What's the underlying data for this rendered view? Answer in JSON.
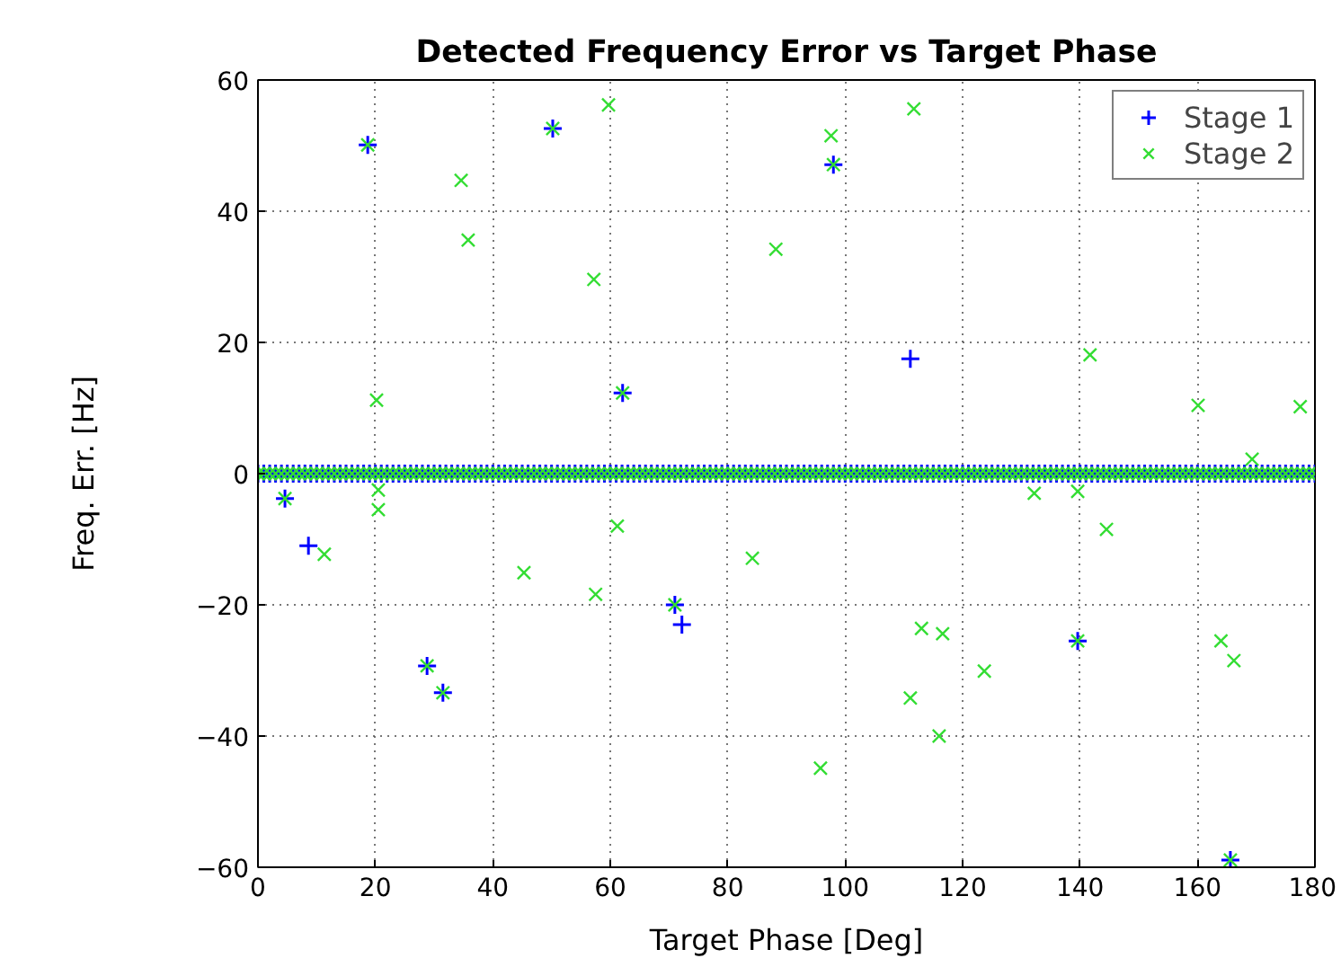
{
  "chart_data": {
    "type": "scatter",
    "title": "Detected Frequency Error vs Target Phase",
    "xlabel": "Target Phase [Deg]",
    "ylabel": "Freq. Err. [Hz]",
    "xlim": [
      0,
      180
    ],
    "ylim": [
      -60,
      60
    ],
    "xticks": [
      0,
      20,
      40,
      60,
      80,
      100,
      120,
      140,
      160,
      180
    ],
    "yticks": [
      -60,
      -40,
      -20,
      0,
      20,
      40,
      60
    ],
    "grid": true,
    "legend": "top right",
    "series": [
      {
        "name": "Stage 1",
        "color": "#0000ff",
        "marker": "cross",
        "x": [
          4.6,
          8.6,
          18.7,
          28.8,
          31.5,
          50.2,
          62.1,
          71.0,
          72.2,
          98.0,
          111.1,
          139.6,
          165.6,
          0,
          1,
          2,
          3,
          4,
          5,
          6,
          7,
          8,
          9,
          10,
          11,
          12,
          13,
          14,
          15,
          16,
          17,
          18,
          19,
          20,
          21,
          22,
          23,
          24,
          25,
          26,
          27,
          28,
          29,
          30,
          31,
          32,
          33,
          34,
          35,
          36,
          37,
          38,
          39,
          40,
          41,
          42,
          43,
          44,
          45,
          46,
          47,
          48,
          49,
          50,
          51,
          52,
          53,
          54,
          55,
          56,
          57,
          58,
          59,
          60,
          61,
          62,
          63,
          64,
          65,
          66,
          67,
          68,
          69,
          70,
          71,
          72,
          73,
          74,
          75,
          76,
          77,
          78,
          79,
          80,
          81,
          82,
          83,
          84,
          85,
          86,
          87,
          88,
          89,
          90,
          91,
          92,
          93,
          94,
          95,
          96,
          97,
          98,
          99,
          100,
          101,
          102,
          103,
          104,
          105,
          106,
          107,
          108,
          109,
          110,
          111,
          112,
          113,
          114,
          115,
          116,
          117,
          118,
          119,
          120,
          121,
          122,
          123,
          124,
          125,
          126,
          127,
          128,
          129,
          130,
          131,
          132,
          133,
          134,
          135,
          136,
          137,
          138,
          139,
          140,
          141,
          142,
          143,
          144,
          145,
          146,
          147,
          148,
          149,
          150,
          151,
          152,
          153,
          154,
          155,
          156,
          157,
          158,
          159,
          160,
          161,
          162,
          163,
          164,
          165,
          166,
          167,
          168,
          169,
          170,
          171,
          172,
          173,
          174,
          175,
          176,
          177,
          178,
          179,
          180
        ],
        "values": [
          -3.8,
          -11,
          50.1,
          -29.3,
          -33.4,
          52.6,
          12.3,
          -20,
          -23,
          47.1,
          17.5,
          -25.5,
          -58.9,
          0,
          0,
          0,
          0,
          0,
          0,
          0,
          0,
          0,
          0,
          0,
          0,
          0,
          0,
          0,
          0,
          0,
          0,
          0,
          0,
          0,
          0,
          0,
          0,
          0,
          0,
          0,
          0,
          0,
          0,
          0,
          0,
          0,
          0,
          0,
          0,
          0,
          0,
          0,
          0,
          0,
          0,
          0,
          0,
          0,
          0,
          0,
          0,
          0,
          0,
          0,
          0,
          0,
          0,
          0,
          0,
          0,
          0,
          0,
          0,
          0,
          0,
          0,
          0,
          0,
          0,
          0,
          0,
          0,
          0,
          0,
          0,
          0,
          0,
          0,
          0,
          0,
          0,
          0,
          0,
          0,
          0,
          0,
          0,
          0,
          0,
          0,
          0,
          0,
          0,
          0,
          0,
          0,
          0,
          0,
          0,
          0,
          0,
          0,
          0,
          0,
          0,
          0,
          0,
          0,
          0,
          0,
          0,
          0,
          0,
          0,
          0,
          0,
          0,
          0,
          0,
          0,
          0,
          0,
          0,
          0,
          0,
          0,
          0,
          0,
          0,
          0,
          0,
          0,
          0,
          0,
          0,
          0,
          0,
          0,
          0,
          0,
          0,
          0,
          0,
          0,
          0,
          0,
          0,
          0,
          0,
          0,
          0,
          0,
          0,
          0,
          0,
          0,
          0,
          0,
          0,
          0,
          0,
          0,
          0,
          0,
          0,
          0,
          0,
          0,
          0,
          0,
          0,
          0,
          0,
          0,
          0,
          0,
          0,
          0,
          0,
          0,
          0,
          0,
          0,
          0
        ]
      },
      {
        "name": "Stage 2",
        "color": "#33dd33",
        "marker": "x",
        "x": [
          4.6,
          11.3,
          18.7,
          20.2,
          20.5,
          20.5,
          28.8,
          31.5,
          34.6,
          35.8,
          45.3,
          50.2,
          57.2,
          57.5,
          59.7,
          61.2,
          62.1,
          71.0,
          84.2,
          88.2,
          95.8,
          97.6,
          98.0,
          111.1,
          111.7,
          113.0,
          116.0,
          116.6,
          123.7,
          132.2,
          139.6,
          139.6,
          141.7,
          144.5,
          160.1,
          164.0,
          165.6,
          166.2,
          169.3,
          177.5,
          0,
          1,
          2,
          3,
          4,
          5,
          6,
          7,
          8,
          9,
          10,
          11,
          12,
          13,
          14,
          15,
          16,
          17,
          18,
          19,
          20,
          21,
          22,
          23,
          24,
          25,
          26,
          27,
          28,
          29,
          30,
          31,
          32,
          33,
          34,
          35,
          36,
          37,
          38,
          39,
          40,
          41,
          42,
          43,
          44,
          45,
          46,
          47,
          48,
          49,
          50,
          51,
          52,
          53,
          54,
          55,
          56,
          57,
          58,
          59,
          60,
          61,
          62,
          63,
          64,
          65,
          66,
          67,
          68,
          69,
          70,
          71,
          72,
          73,
          74,
          75,
          76,
          77,
          78,
          79,
          80,
          81,
          82,
          83,
          84,
          85,
          86,
          87,
          88,
          89,
          90,
          91,
          92,
          93,
          94,
          95,
          96,
          97,
          98,
          99,
          100,
          101,
          102,
          103,
          104,
          105,
          106,
          107,
          108,
          109,
          110,
          111,
          112,
          113,
          114,
          115,
          116,
          117,
          118,
          119,
          120,
          121,
          122,
          123,
          124,
          125,
          126,
          127,
          128,
          129,
          130,
          131,
          132,
          133,
          134,
          135,
          136,
          137,
          138,
          139,
          140,
          141,
          142,
          143,
          144,
          145,
          146,
          147,
          148,
          149,
          150,
          151,
          152,
          153,
          154,
          155,
          156,
          157,
          158,
          159,
          160,
          161,
          162,
          163,
          164,
          165,
          166,
          167,
          168,
          169,
          170,
          171,
          172,
          173,
          174,
          175,
          176,
          177,
          178,
          179,
          180
        ],
        "values": [
          -3.8,
          -12.3,
          50.1,
          11.2,
          -2.5,
          -5.5,
          -29.3,
          -33.4,
          44.7,
          35.6,
          -15.1,
          52.6,
          29.6,
          -18.4,
          56.2,
          -8,
          12.3,
          -20,
          -12.9,
          34.2,
          -44.9,
          51.5,
          47.1,
          -34.2,
          55.6,
          -23.6,
          -40,
          -24.4,
          -30.1,
          -3,
          -2.7,
          -25.5,
          18.1,
          -8.5,
          10.4,
          -25.5,
          -58.9,
          -28.5,
          2.2,
          10.2,
          0,
          0,
          0,
          0,
          0,
          0,
          0,
          0,
          0,
          0,
          0,
          0,
          0,
          0,
          0,
          0,
          0,
          0,
          0,
          0,
          0,
          0,
          0,
          0,
          0,
          0,
          0,
          0,
          0,
          0,
          0,
          0,
          0,
          0,
          0,
          0,
          0,
          0,
          0,
          0,
          0,
          0,
          0,
          0,
          0,
          0,
          0,
          0,
          0,
          0,
          0,
          0,
          0,
          0,
          0,
          0,
          0,
          0,
          0,
          0,
          0,
          0,
          0,
          0,
          0,
          0,
          0,
          0,
          0,
          0,
          0,
          0,
          0,
          0,
          0,
          0,
          0,
          0,
          0,
          0,
          0,
          0,
          0,
          0,
          0,
          0,
          0,
          0,
          0,
          0,
          0,
          0,
          0,
          0,
          0,
          0,
          0,
          0,
          0,
          0,
          0,
          0,
          0,
          0,
          0,
          0,
          0,
          0,
          0,
          0,
          0,
          0,
          0,
          0,
          0,
          0,
          0,
          0,
          0,
          0,
          0,
          0,
          0,
          0,
          0,
          0,
          0,
          0,
          0,
          0,
          0,
          0,
          0,
          0,
          0,
          0,
          0,
          0,
          0,
          0,
          0,
          0,
          0,
          0,
          0,
          0,
          0,
          0,
          0,
          0,
          0,
          0,
          0,
          0,
          0,
          0,
          0,
          0,
          0,
          0,
          0,
          0,
          0,
          0,
          0,
          0,
          0,
          0,
          0,
          0,
          0,
          0,
          0,
          0,
          0,
          0,
          0,
          0,
          0,
          0,
          0
        ]
      }
    ]
  }
}
